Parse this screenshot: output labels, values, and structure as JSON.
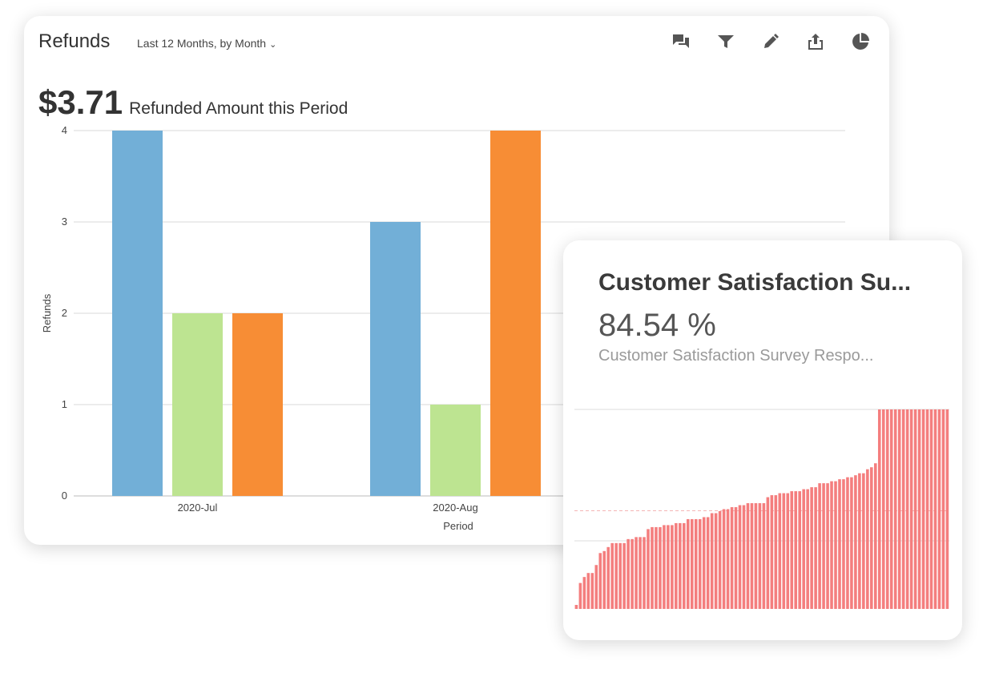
{
  "refunds_card": {
    "title": "Refunds",
    "period_label": "Last 12 Months, by Month",
    "toolbar": [
      {
        "name": "comments-icon"
      },
      {
        "name": "filter-icon"
      },
      {
        "name": "edit-icon"
      },
      {
        "name": "share-icon"
      },
      {
        "name": "chart-type-icon"
      }
    ],
    "kpi_value": "$3.71",
    "kpi_label": "Refunded Amount this Period"
  },
  "chart_data": [
    {
      "type": "bar",
      "title": "",
      "xlabel": "Period",
      "ylabel": "Refunds",
      "ylim": [
        0,
        4
      ],
      "yticks": [
        0,
        1,
        2,
        3,
        4
      ],
      "grid": true,
      "categories": [
        "2020-Jul",
        "2020-Aug"
      ],
      "series": [
        {
          "color": "#72AFD7",
          "values": [
            4,
            3
          ]
        },
        {
          "color": "#BDE491",
          "values": [
            2,
            1
          ]
        },
        {
          "color": "#F78D35",
          "values": [
            2,
            4
          ]
        }
      ]
    },
    {
      "type": "bar",
      "title": "",
      "color": "#F47E7E",
      "ylim": [
        0,
        100
      ],
      "values": [
        2,
        13,
        16,
        18,
        18,
        22,
        28,
        29,
        31,
        33,
        33,
        33,
        33,
        35,
        35,
        36,
        36,
        36,
        40,
        41,
        41,
        41,
        42,
        42,
        42,
        43,
        43,
        43,
        45,
        45,
        45,
        45,
        46,
        46,
        48,
        48,
        49,
        50,
        50,
        51,
        51,
        52,
        52,
        53,
        53,
        53,
        53,
        53,
        56,
        57,
        57,
        58,
        58,
        58,
        59,
        59,
        59,
        60,
        60,
        61,
        61,
        63,
        63,
        63,
        64,
        64,
        65,
        65,
        66,
        66,
        67,
        68,
        68,
        70,
        71,
        73,
        100,
        100,
        100,
        100,
        100,
        100,
        100,
        100,
        100,
        100,
        100,
        100,
        100,
        100,
        100,
        100,
        100,
        100
      ]
    }
  ],
  "csat_card": {
    "title": "Customer Satisfaction Su...",
    "value": "84.54 %",
    "subtitle": "Customer Satisfaction Survey Respo..."
  }
}
